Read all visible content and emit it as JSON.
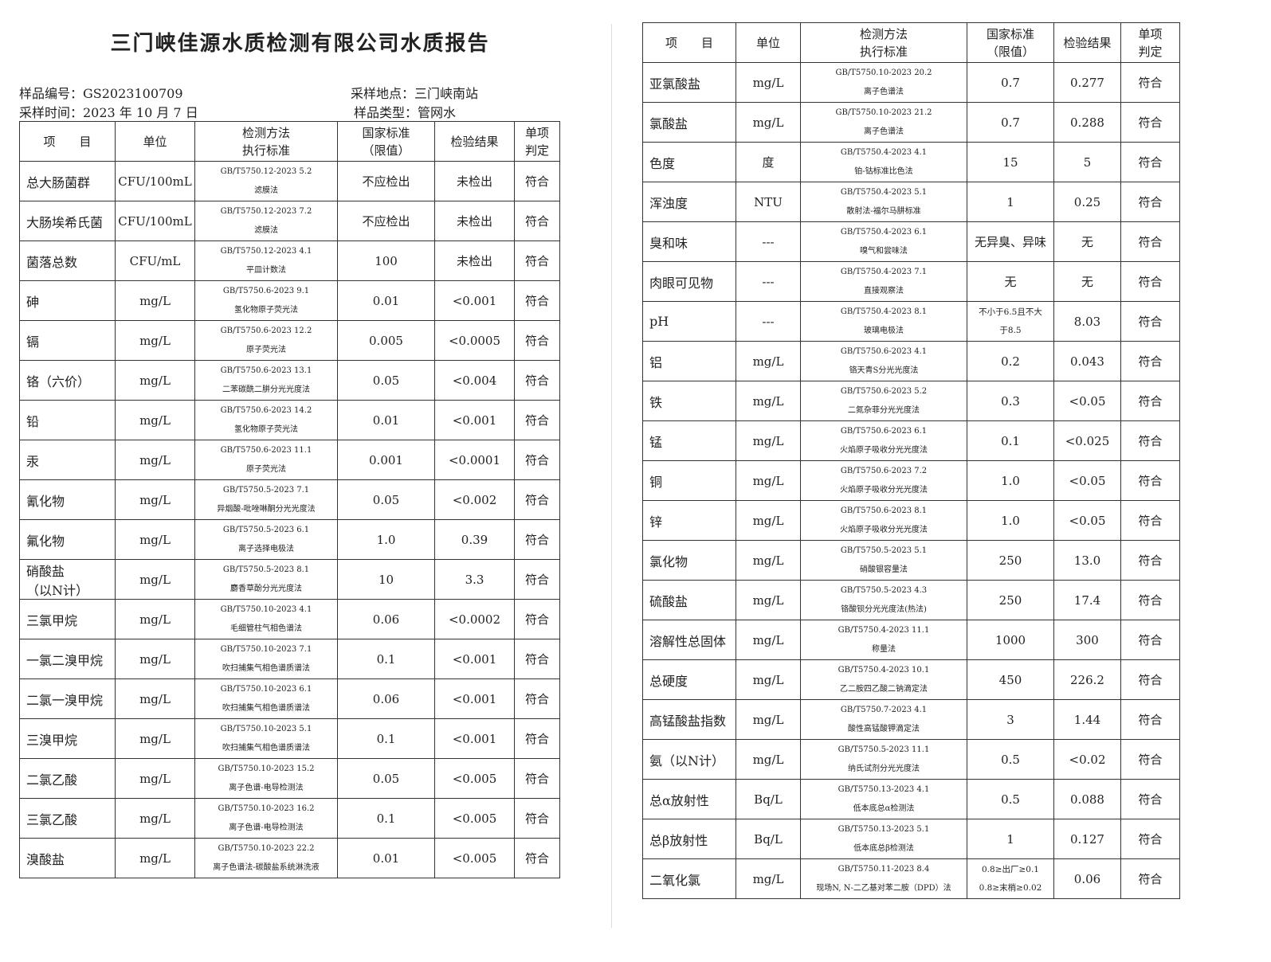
{
  "title": "三门峡佳源水质检测有限公司水质报告",
  "info": {
    "sample_no": "样品编号：GS2023100709",
    "sample_time": "采样时间：2023 年 10 月 7 日",
    "sample_site": "采样地点：三门峡南站",
    "sample_type": "样品类型：管网水"
  },
  "headers": [
    "项　　目",
    "单位",
    "检测方法\n执行标准",
    "国家标准\n（限值）",
    "检验结果",
    "单项\n判定"
  ],
  "left_rows": [
    [
      "总大肠菌群",
      "CFU/100mL",
      "GB/T5750.12-2023 5.2\n滤膜法",
      "不应检出",
      "未检出",
      "符合"
    ],
    [
      "大肠埃希氏菌",
      "CFU/100mL",
      "GB/T5750.12-2023 7.2\n滤膜法",
      "不应检出",
      "未检出",
      "符合"
    ],
    [
      "菌落总数",
      "CFU/mL",
      "GB/T5750.12-2023 4.1\n平皿计数法",
      "100",
      "未检出",
      "符合"
    ],
    [
      "砷",
      "mg/L",
      "GB/T5750.6-2023 9.1\n氢化物原子荧光法",
      "0.01",
      "<0.001",
      "符合"
    ],
    [
      "镉",
      "mg/L",
      "GB/T5750.6-2023 12.2\n原子荧光法",
      "0.005",
      "<0.0005",
      "符合"
    ],
    [
      "铬（六价）",
      "mg/L",
      "GB/T5750.6-2023 13.1\n二苯碳酰二肼分光光度法",
      "0.05",
      "<0.004",
      "符合"
    ],
    [
      "铅",
      "mg/L",
      "GB/T5750.6-2023 14.2\n氢化物原子荧光法",
      "0.01",
      "<0.001",
      "符合"
    ],
    [
      "汞",
      "mg/L",
      "GB/T5750.6-2023 11.1\n原子荧光法",
      "0.001",
      "<0.0001",
      "符合"
    ],
    [
      "氰化物",
      "mg/L",
      "GB/T5750.5-2023 7.1\n异烟酸-吡唑啉酮分光光度法",
      "0.05",
      "<0.002",
      "符合"
    ],
    [
      "氟化物",
      "mg/L",
      "GB/T5750.5-2023 6.1\n离子选择电极法",
      "1.0",
      "0.39",
      "符合"
    ],
    [
      "硝酸盐\n（以N计）",
      "mg/L",
      "GB/T5750.5-2023 8.1\n麝香草酚分光光度法",
      "10",
      "3.3",
      "符合"
    ],
    [
      "三氯甲烷",
      "mg/L",
      "GB/T5750.10-2023 4.1\n毛细管柱气相色谱法",
      "0.06",
      "<0.0002",
      "符合"
    ],
    [
      "一氯二溴甲烷",
      "mg/L",
      "GB/T5750.10-2023 7.1\n吹扫捕集气相色谱质谱法",
      "0.1",
      "<0.001",
      "符合"
    ],
    [
      "二氯一溴甲烷",
      "mg/L",
      "GB/T5750.10-2023 6.1\n吹扫捕集气相色谱质谱法",
      "0.06",
      "<0.001",
      "符合"
    ],
    [
      "三溴甲烷",
      "mg/L",
      "GB/T5750.10-2023 5.1\n吹扫捕集气相色谱质谱法",
      "0.1",
      "<0.001",
      "符合"
    ],
    [
      "二氯乙酸",
      "mg/L",
      "GB/T5750.10-2023 15.2\n离子色谱-电导检测法",
      "0.05",
      "<0.005",
      "符合"
    ],
    [
      "三氯乙酸",
      "mg/L",
      "GB/T5750.10-2023 16.2\n离子色谱-电导检测法",
      "0.1",
      "<0.005",
      "符合"
    ],
    [
      "溴酸盐",
      "mg/L",
      "GB/T5750.10-2023 22.2\n离子色谱法-碳酸盐系统淋洗液",
      "0.01",
      "<0.005",
      "符合"
    ]
  ],
  "right_rows": [
    [
      "亚氯酸盐",
      "mg/L",
      "GB/T5750.10-2023 20.2\n离子色谱法",
      "0.7",
      "0.277",
      "符合"
    ],
    [
      "氯酸盐",
      "mg/L",
      "GB/T5750.10-2023 21.2\n离子色谱法",
      "0.7",
      "0.288",
      "符合"
    ],
    [
      "色度",
      "度",
      "GB/T5750.4-2023 4.1\n铂-钴标准比色法",
      "15",
      "5",
      "符合"
    ],
    [
      "浑浊度",
      "NTU",
      "GB/T5750.4-2023 5.1\n散射法-福尔马肼标准",
      "1",
      "0.25",
      "符合"
    ],
    [
      "臭和味",
      "---",
      "GB/T5750.4-2023 6.1\n嗅气和尝味法",
      "无异臭、异味",
      "无",
      "符合"
    ],
    [
      "肉眼可见物",
      "---",
      "GB/T5750.4-2023 7.1\n直接观察法",
      "无",
      "无",
      "符合"
    ],
    [
      "pH",
      "---",
      "GB/T5750.4-2023 8.1\n玻璃电极法",
      "不小于6.5且不大\n于8.5",
      "8.03",
      "符合"
    ],
    [
      "铝",
      "mg/L",
      "GB/T5750.6-2023 4.1\n铬天青S分光光度法",
      "0.2",
      "0.043",
      "符合"
    ],
    [
      "铁",
      "mg/L",
      "GB/T5750.6-2023 5.2\n二氮杂菲分光光度法",
      "0.3",
      "<0.05",
      "符合"
    ],
    [
      "锰",
      "mg/L",
      "GB/T5750.6-2023 6.1\n火焰原子吸收分光光度法",
      "0.1",
      "<0.025",
      "符合"
    ],
    [
      "铜",
      "mg/L",
      "GB/T5750.6-2023 7.2\n火焰原子吸收分光光度法",
      "1.0",
      "<0.05",
      "符合"
    ],
    [
      "锌",
      "mg/L",
      "GB/T5750.6-2023 8.1\n火焰原子吸收分光光度法",
      "1.0",
      "<0.05",
      "符合"
    ],
    [
      "氯化物",
      "mg/L",
      "GB/T5750.5-2023 5.1\n硝酸银容量法",
      "250",
      "13.0",
      "符合"
    ],
    [
      "硫酸盐",
      "mg/L",
      "GB/T5750.5-2023 4.3\n铬酸钡分光光度法(热法)",
      "250",
      "17.4",
      "符合"
    ],
    [
      "溶解性总固体",
      "mg/L",
      "GB/T5750.4-2023 11.1\n称量法",
      "1000",
      "300",
      "符合"
    ],
    [
      "总硬度",
      "mg/L",
      "GB/T5750.4-2023 10.1\n乙二胺四乙酸二钠滴定法",
      "450",
      "226.2",
      "符合"
    ],
    [
      "高锰酸盐指数",
      "mg/L",
      "GB/T5750.7-2023 4.1\n酸性高锰酸钾滴定法",
      "3",
      "1.44",
      "符合"
    ],
    [
      "氨（以N计）",
      "mg/L",
      "GB/T5750.5-2023 11.1\n纳氏试剂分光光度法",
      "0.5",
      "<0.02",
      "符合"
    ],
    [
      "总α放射性",
      "Bq/L",
      "GB/T5750.13-2023 4.1\n低本底总α检测法",
      "0.5",
      "0.088",
      "符合"
    ],
    [
      "总β放射性",
      "Bq/L",
      "GB/T5750.13-2023 5.1\n低本底总β检测法",
      "1",
      "0.127",
      "符合"
    ],
    [
      "二氧化氯",
      "mg/L",
      "GB/T5750.11-2023 8.4\n现场N, N-二乙基对苯二胺（DPD）法",
      "0.8≥出厂≥0.1\n0.8≥末梢≥0.02",
      "0.06",
      "符合"
    ]
  ]
}
